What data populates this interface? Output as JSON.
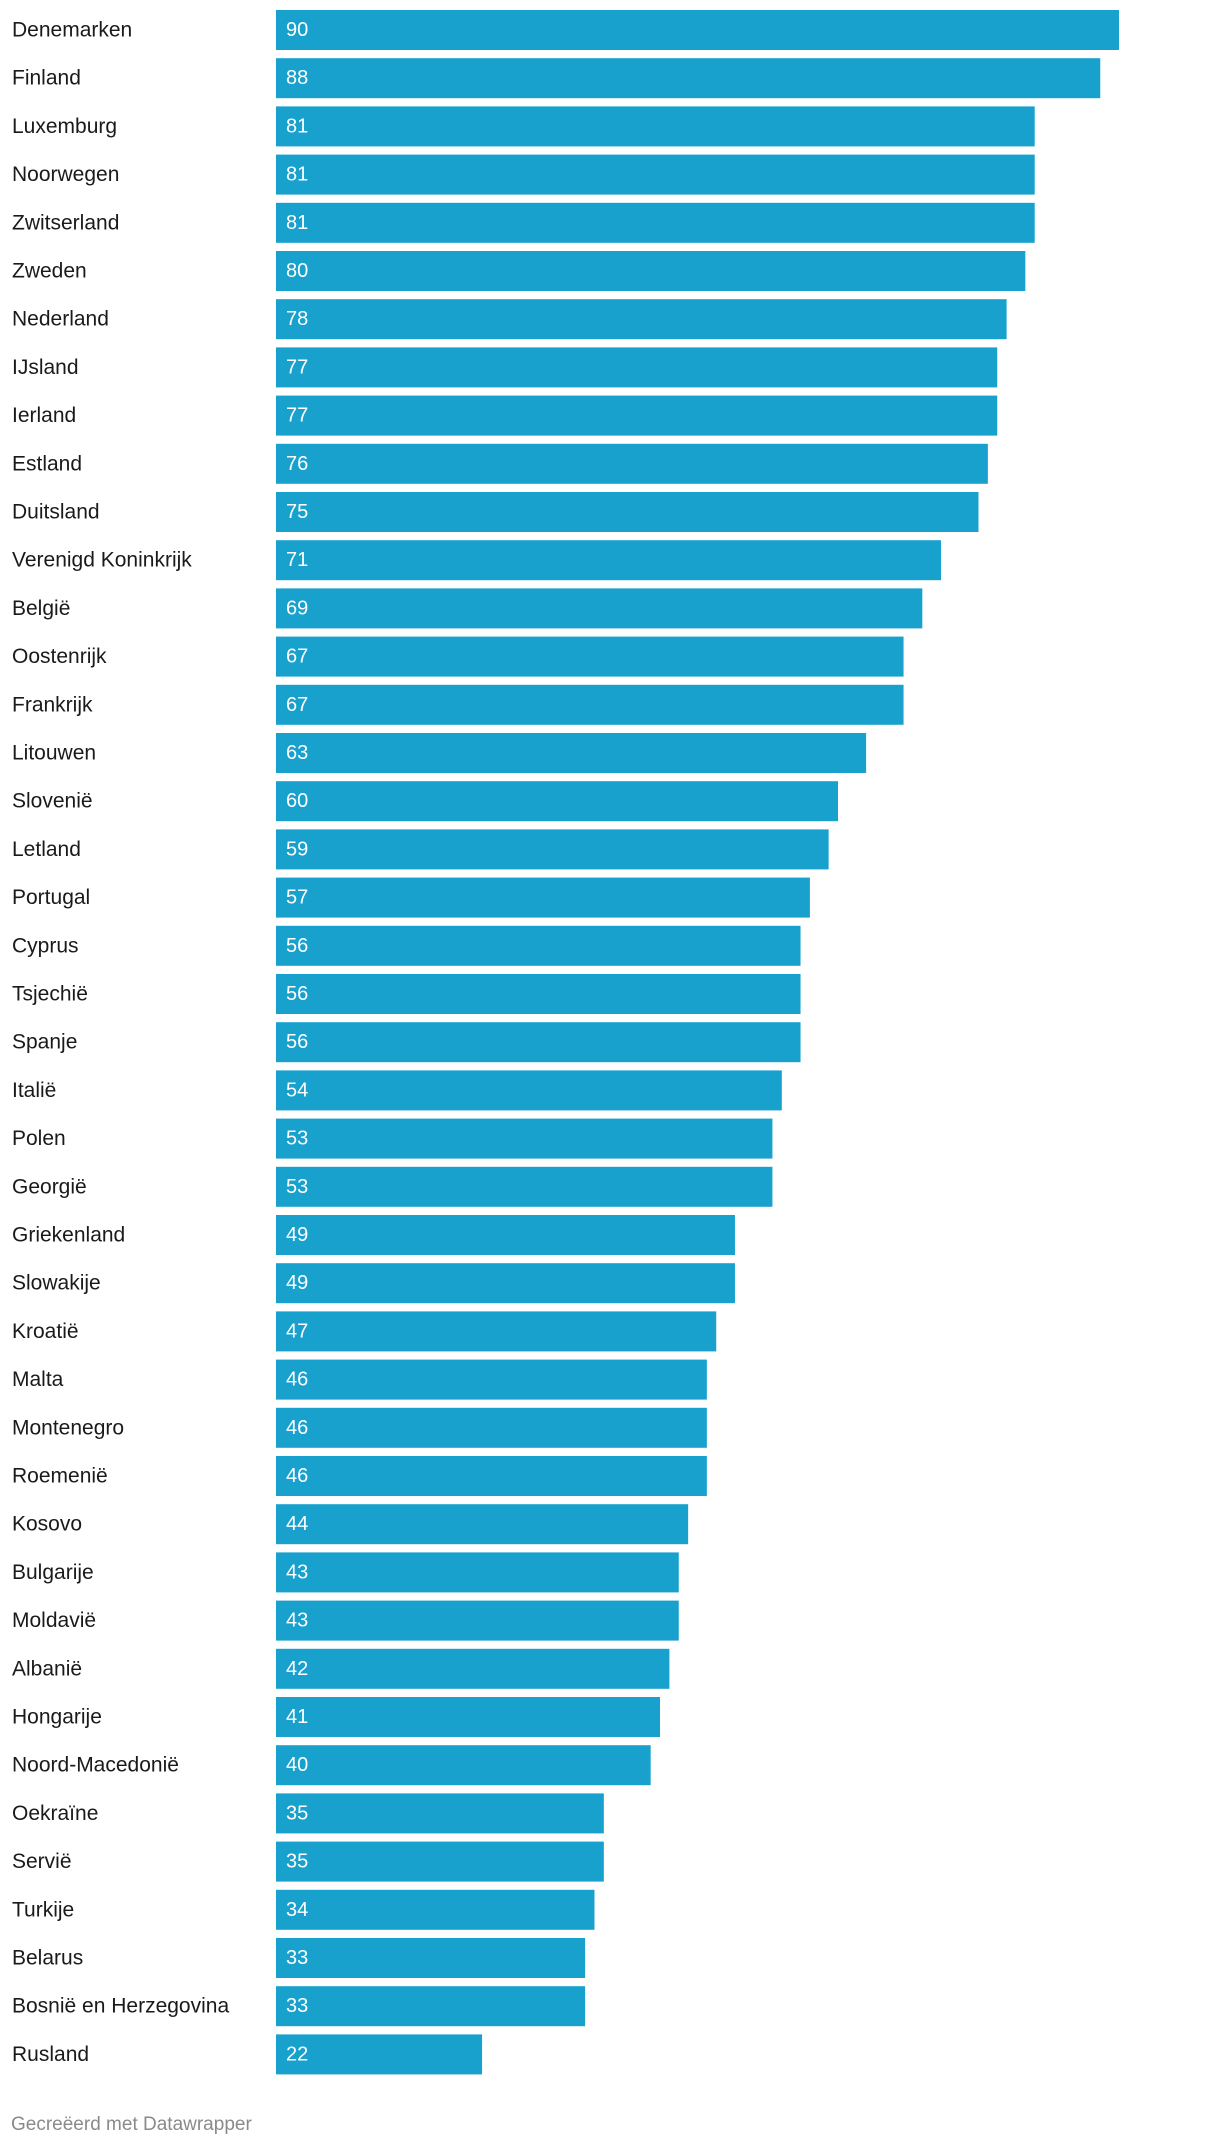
{
  "chart_data": {
    "type": "bar",
    "orientation": "horizontal",
    "categories": [
      "Denemarken",
      "Finland",
      "Luxemburg",
      "Noorwegen",
      "Zwitserland",
      "Zweden",
      "Nederland",
      "IJsland",
      "Ierland",
      "Estland",
      "Duitsland",
      "Verenigd Koninkrijk",
      "België",
      "Oostenrijk",
      "Frankrijk",
      "Litouwen",
      "Slovenië",
      "Letland",
      "Portugal",
      "Cyprus",
      "Tsjechië",
      "Spanje",
      "Italië",
      "Polen",
      "Georgië",
      "Griekenland",
      "Slowakije",
      "Kroatië",
      "Malta",
      "Montenegro",
      "Roemenië",
      "Kosovo",
      "Bulgarije",
      "Moldavië",
      "Albanië",
      "Hongarije",
      "Noord-Macedonië",
      "Oekraïne",
      "Servië",
      "Turkije",
      "Belarus",
      "Bosnië en Herzegovina",
      "Rusland"
    ],
    "values": [
      90,
      88,
      81,
      81,
      81,
      80,
      78,
      77,
      77,
      76,
      75,
      71,
      69,
      67,
      67,
      63,
      60,
      59,
      57,
      56,
      56,
      56,
      54,
      53,
      53,
      49,
      49,
      47,
      46,
      46,
      46,
      44,
      43,
      43,
      42,
      41,
      40,
      35,
      35,
      34,
      33,
      33,
      22
    ],
    "xlim": [
      0,
      90
    ],
    "grid": false,
    "legend": "none",
    "colors": {
      "bar": "#18a1cd",
      "value_text": "#ffffff",
      "label_text": "#1a1a1a"
    }
  },
  "credit": "Gecreëerd met Datawrapper"
}
